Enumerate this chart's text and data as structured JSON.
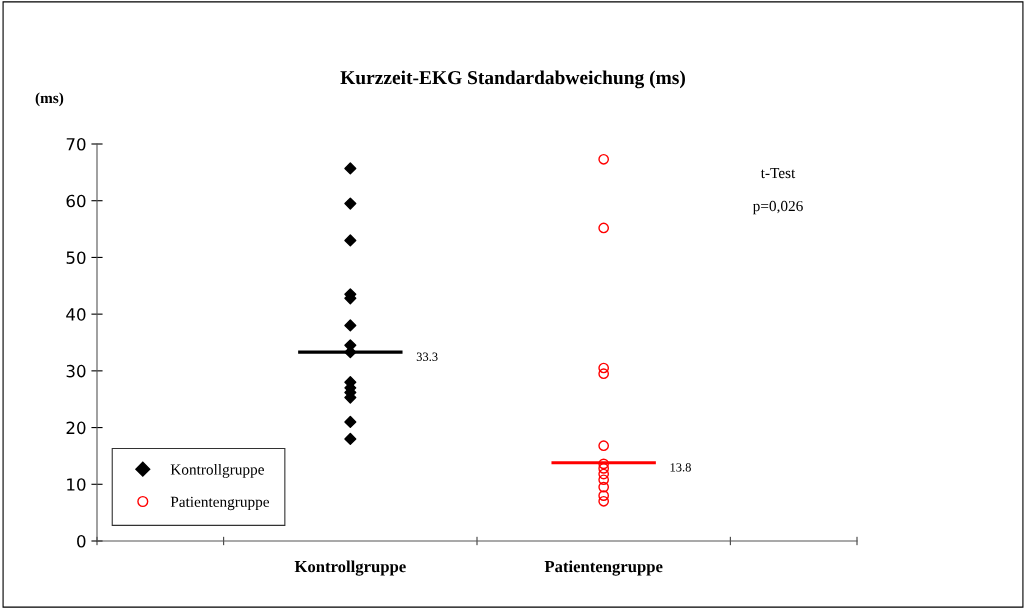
{
  "chart_data": {
    "type": "scatter",
    "title": "Kurzzeit-EKG Standardabweichung (ms)",
    "ylabel": "(ms)",
    "categories": [
      "Kontrollgruppe",
      "Patientengruppe"
    ],
    "series": [
      {
        "name": "Kontrollgruppe",
        "color": "#000000",
        "marker": "diamond",
        "x": [
          "Kontrollgruppe",
          "Kontrollgruppe",
          "Kontrollgruppe",
          "Kontrollgruppe",
          "Kontrollgruppe",
          "Kontrollgruppe",
          "Kontrollgruppe",
          "Kontrollgruppe",
          "Kontrollgruppe",
          "Kontrollgruppe",
          "Kontrollgruppe",
          "Kontrollgruppe",
          "Kontrollgruppe",
          "Kontrollgruppe"
        ],
        "values": [
          65.7,
          59.5,
          53,
          43.5,
          42.8,
          38,
          34.5,
          33.3,
          28,
          27,
          26.2,
          25.3,
          21,
          18
        ]
      },
      {
        "name": "Patientengruppe",
        "color": "#ff0000",
        "marker": "circle",
        "x": [
          "Patientengruppe",
          "Patientengruppe",
          "Patientengruppe",
          "Patientengruppe",
          "Patientengruppe",
          "Patientengruppe",
          "Patientengruppe",
          "Patientengruppe",
          "Patientengruppe",
          "Patientengruppe",
          "Patientengruppe",
          "Patientengruppe"
        ],
        "values": [
          67.3,
          55.2,
          30.5,
          29.5,
          16.8,
          13.6,
          12.8,
          11.8,
          10.8,
          9.5,
          8,
          7
        ]
      }
    ],
    "ref_lines": [
      {
        "axis": "y",
        "value": 33.3,
        "label": "33.3",
        "color": "#000000"
      },
      {
        "axis": "y",
        "value": 13.8,
        "label": "13.8",
        "color": "#ff0000"
      }
    ],
    "annotations": [
      "t-Test",
      "p=0,026"
    ],
    "ylim": [
      0,
      70
    ],
    "yticks": [
      0,
      10,
      20,
      30,
      40,
      50,
      60,
      70
    ],
    "grid": false,
    "legend": "bottom left"
  }
}
